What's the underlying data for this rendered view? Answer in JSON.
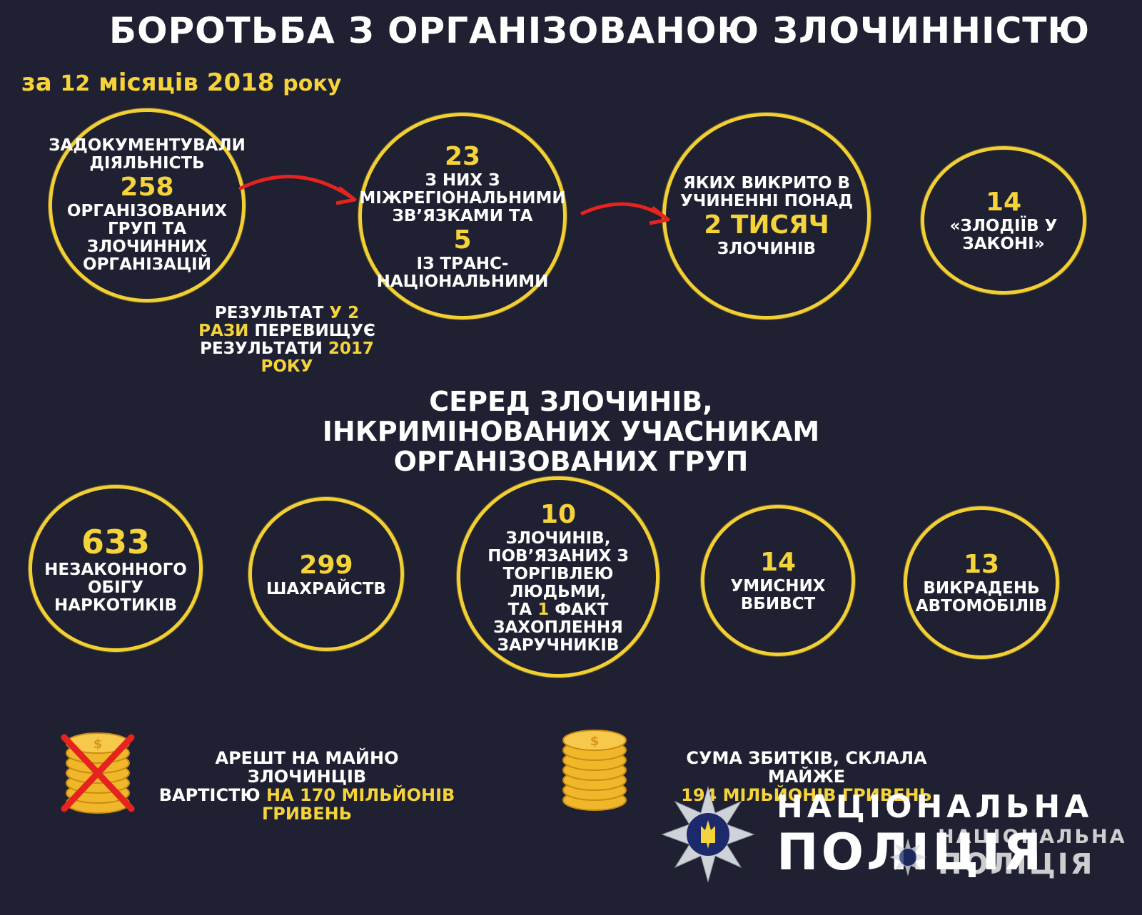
{
  "header": {
    "title": "БОРОТЬБА З ОРГАНІЗОВАНОЮ ЗЛОЧИННІСТЮ",
    "period_prefix": "за",
    "period_num": "12",
    "period_months": "місяців",
    "period_year": "2018",
    "period_suffix": "року"
  },
  "top_circles": {
    "c1": {
      "line1": "ЗАДОКУМЕНТУВАЛИ",
      "line2": "ДІЯЛЬНІСТЬ",
      "number": "258",
      "line3": "ОРГАНІЗОВАНИХ",
      "line4": "ГРУП ТА",
      "line5": "ЗЛОЧИННИХ",
      "line6": "ОРГАНІЗАЦІЙ"
    },
    "c2": {
      "number1": "23",
      "line1": "З НИХ З",
      "line2": "МІЖРЕГІОНАЛЬНИМИ",
      "line3": "ЗВ’ЯЗКАМИ ТА",
      "number2": "5",
      "line4": "ІЗ ТРАНС-",
      "line5": "НАЦІОНАЛЬНИМИ"
    },
    "c3": {
      "line1": "ЯКИХ ВИКРИТО В",
      "line2": "УЧИНЕННІ ПОНАД",
      "number": "2 ТИСЯЧ",
      "line3": "ЗЛОЧИНІВ"
    },
    "c4": {
      "number": "14",
      "line1": "«ЗЛОДІЇВ У",
      "line2": "ЗАКОНІ»"
    }
  },
  "result_note": {
    "w1": "РЕЗУЛЬТАТ",
    "y1": "У 2",
    "y2": "РАЗИ",
    "w2": "ПЕРЕВИЩУЄ",
    "w3": "РЕЗУЛЬТАТИ",
    "y3": "2017",
    "y4": "РОКУ"
  },
  "section_heading": {
    "line1": "СЕРЕД ЗЛОЧИНІВ,",
    "line2": "ІНКРИМІНОВАНИХ УЧАСНИКАМ",
    "line3": "ОРГАНІЗОВАНИХ ГРУП"
  },
  "bottom_circles": {
    "b1": {
      "number": "633",
      "line1": "НЕЗАКОННОГО",
      "line2": "ОБІГУ",
      "line3": "НАРКОТИКІВ"
    },
    "b2": {
      "number": "299",
      "line1": "ШАХРАЙСТВ"
    },
    "b3": {
      "number": "10",
      "line1": "ЗЛОЧИНІВ,",
      "line2": "ПОВ’ЯЗАНИХ З",
      "line3": "ТОРГІВЛЕЮ ЛЮДЬМИ,",
      "line4a": "ТА",
      "line4y": "1",
      "line4b": "ФАКТ",
      "line5": "ЗАХОПЛЕННЯ",
      "line6": "ЗАРУЧНИКІВ"
    },
    "b4": {
      "number": "14",
      "line1": "УМИСНИХ",
      "line2": "ВБИВСТ"
    },
    "b5": {
      "number": "13",
      "line1": "ВИКРАДЕНЬ",
      "line2": "АВТОМОБІЛІВ"
    }
  },
  "money": {
    "arrest": {
      "line1": "АРЕШТ НА МАЙНО ЗЛОЧИНЦІВ",
      "line2a": "ВАРТІСТЮ",
      "line2y": "НА 170 МІЛЬЙОНІВ",
      "line3y": "ГРИВЕНЬ"
    },
    "damage": {
      "line1": "СУМА ЗБИТКІВ, СКЛАЛА МАЙЖЕ",
      "line2y": "194 МІЛЬЙОНІВ ГРИВЕНЬ"
    }
  },
  "logo": {
    "line1": "НАЦІОНАЛЬНА",
    "line2": "ПОЛІЦІЯ",
    "small_line1": "НАЦІОНАЛЬНА",
    "small_line2": "ПОЛІЦІЯ"
  },
  "colors": {
    "background": "#1f2031",
    "accent": "#f5d33a",
    "arrow": "#e52420",
    "ring": "#f2cf33"
  }
}
